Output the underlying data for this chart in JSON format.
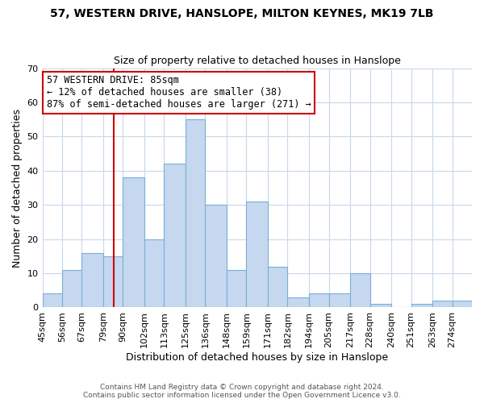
{
  "title": "57, WESTERN DRIVE, HANSLOPE, MILTON KEYNES, MK19 7LB",
  "subtitle": "Size of property relative to detached houses in Hanslope",
  "xlabel": "Distribution of detached houses by size in Hanslope",
  "ylabel": "Number of detached properties",
  "bin_labels": [
    "45sqm",
    "56sqm",
    "67sqm",
    "79sqm",
    "90sqm",
    "102sqm",
    "113sqm",
    "125sqm",
    "136sqm",
    "148sqm",
    "159sqm",
    "171sqm",
    "182sqm",
    "194sqm",
    "205sqm",
    "217sqm",
    "228sqm",
    "240sqm",
    "251sqm",
    "263sqm",
    "274sqm"
  ],
  "bin_edges": [
    45,
    56,
    67,
    79,
    90,
    102,
    113,
    125,
    136,
    148,
    159,
    171,
    182,
    194,
    205,
    217,
    228,
    240,
    251,
    263,
    274
  ],
  "counts": [
    4,
    11,
    16,
    15,
    38,
    20,
    42,
    55,
    30,
    11,
    31,
    12,
    3,
    4,
    4,
    10,
    1,
    0,
    1,
    2,
    2
  ],
  "bar_color": "#c5d8f0",
  "bar_edge_color": "#7aafd4",
  "property_size": 85,
  "property_line_color": "#cc0000",
  "annotation_line1": "57 WESTERN DRIVE: 85sqm",
  "annotation_line2": "← 12% of detached houses are smaller (38)",
  "annotation_line3": "87% of semi-detached houses are larger (271) →",
  "annotation_box_edge_color": "#cc0000",
  "ylim": [
    0,
    70
  ],
  "yticks": [
    0,
    10,
    20,
    30,
    40,
    50,
    60,
    70
  ],
  "xlim_min": 45,
  "xlim_max": 285,
  "footer_line1": "Contains HM Land Registry data © Crown copyright and database right 2024.",
  "footer_line2": "Contains public sector information licensed under the Open Government Licence v3.0.",
  "background_color": "#ffffff",
  "grid_color": "#c8d8ec"
}
